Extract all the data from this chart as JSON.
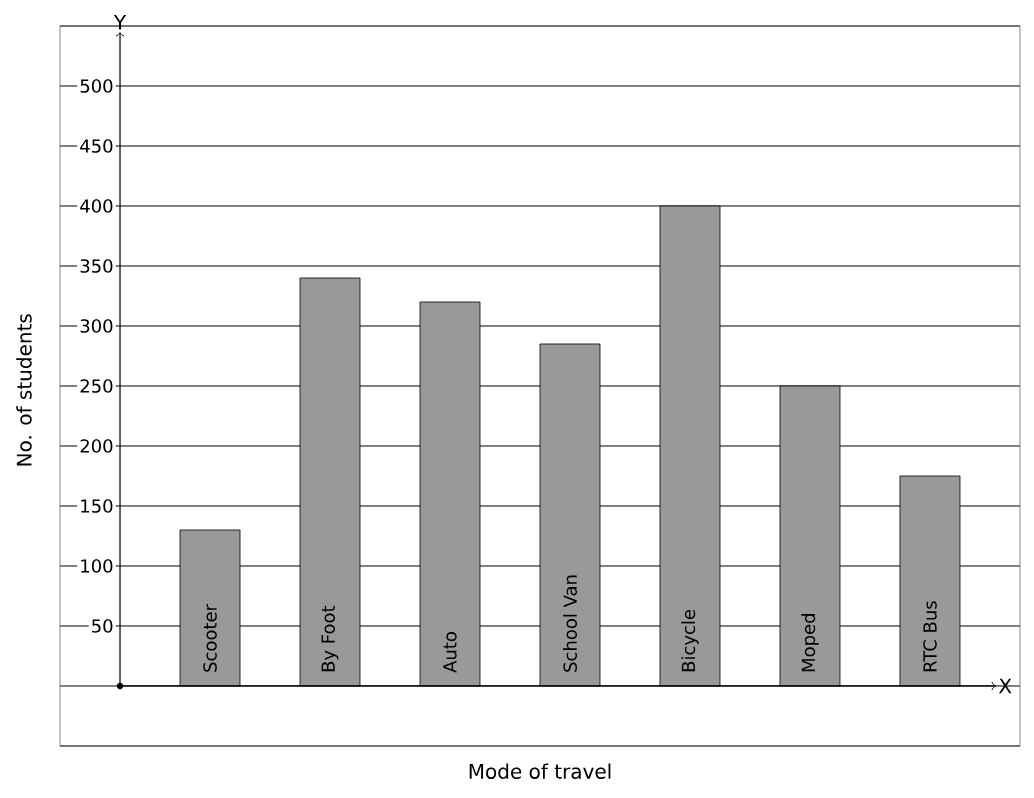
{
  "chart_data": {
    "type": "bar",
    "xlabel": "Mode of travel",
    "ylabel": "No. of students",
    "categories": [
      "Scooter",
      "By Foot",
      "Auto",
      "School Van",
      "Bicycle",
      "Moped",
      "RTC Bus"
    ],
    "values": [
      130,
      340,
      320,
      285,
      400,
      250,
      175
    ],
    "color": "#999999",
    "ylim": [
      -50,
      550
    ],
    "yticks": [
      50,
      100,
      150,
      200,
      250,
      300,
      350,
      400,
      450,
      500
    ],
    "grid": true,
    "annotations": [
      "Y",
      "X"
    ]
  }
}
